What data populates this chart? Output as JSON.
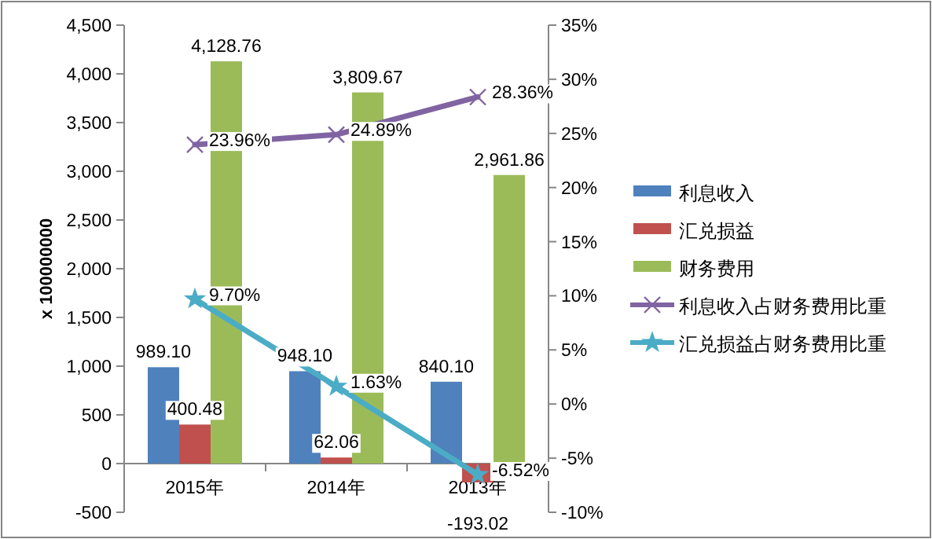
{
  "chart_data": {
    "type": "bar",
    "ylabel": "x 100000000",
    "categories": [
      "2015年",
      "2014年",
      "2013年"
    ],
    "ylim": [
      -500,
      4500
    ],
    "yticks": [
      {
        "value": -500,
        "label": "-500"
      },
      0,
      500,
      {
        "value": 1000,
        "label": "1,000"
      },
      {
        "value": 1500,
        "label": "1,500"
      },
      {
        "value": 2000,
        "label": "2,000"
      },
      {
        "value": 2500,
        "label": "2,500"
      },
      {
        "value": 3000,
        "label": "3,000"
      },
      {
        "value": 3500,
        "label": "3,500"
      },
      {
        "value": 4000,
        "label": "4,000"
      },
      {
        "value": 4500,
        "label": "4,500"
      }
    ],
    "y2lim": [
      -10,
      35
    ],
    "y2ticks": [
      {
        "value": -10,
        "label": "-10%"
      },
      {
        "value": -5,
        "label": "-5%"
      },
      {
        "value": 0,
        "label": "0%"
      },
      {
        "value": 5,
        "label": "5%"
      },
      {
        "value": 10,
        "label": "10%"
      },
      {
        "value": 15,
        "label": "15%"
      },
      {
        "value": 20,
        "label": "20%"
      },
      {
        "value": 25,
        "label": "25%"
      },
      {
        "value": 30,
        "label": "30%"
      },
      {
        "value": 35,
        "label": "35%"
      }
    ],
    "legend": "right",
    "series": [
      {
        "name": "利息收入",
        "color": "#4f81bd",
        "values": [
          989.1,
          948.1,
          840.1
        ],
        "value_labels": [
          "989.10",
          "948.10",
          "840.10"
        ]
      },
      {
        "name": "汇兑损益",
        "color": "#c0504d",
        "values": [
          400.48,
          62.06,
          -193.02
        ],
        "value_labels": [
          "400.48",
          "62.06",
          "-193.02"
        ]
      },
      {
        "name": "财务费用",
        "color": "#9bbb59",
        "values": [
          4128.76,
          3809.67,
          2961.86
        ],
        "value_labels": [
          "4,128.76",
          "3,809.67",
          "2,961.86"
        ]
      },
      {
        "name": "利息收入占财务费用比重",
        "type": "line",
        "axis": "y2",
        "marker": "cross",
        "color": "#8064a2",
        "values": [
          23.96,
          24.89,
          28.36
        ],
        "value_labels": [
          "23.96%",
          "24.89%",
          "28.36%"
        ]
      },
      {
        "name": "汇兑损益占财务费用比重",
        "type": "line",
        "axis": "y2",
        "marker": "star",
        "color": "#4bacc6",
        "values": [
          9.7,
          1.63,
          -6.52
        ],
        "value_labels": [
          "9.70%",
          "1.63%",
          "-6.52%"
        ]
      }
    ]
  }
}
